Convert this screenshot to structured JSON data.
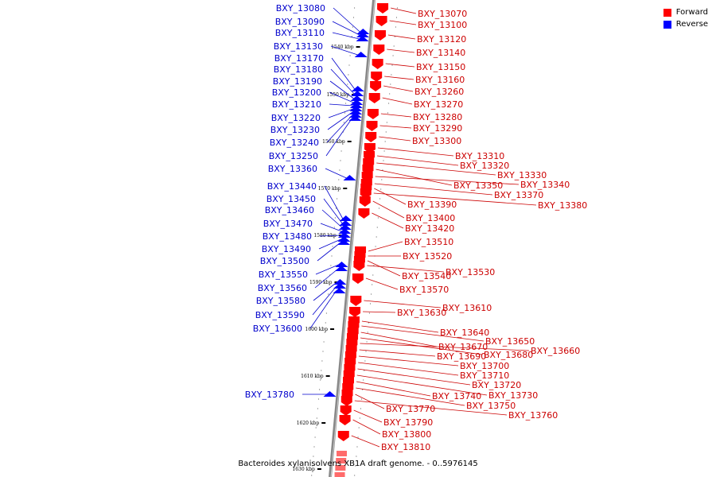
{
  "legend": {
    "forward_label": "Forward",
    "reverse_label": "Reverse",
    "forward_color": "#ff0000",
    "reverse_color": "#0000ff"
  },
  "caption": "Bacteroides xylanisolvens XB1A draft genome. - 0..5976145",
  "colors": {
    "backbone": "#888888",
    "forward_gene": "#ff0000",
    "reverse_gene": "#0000ff",
    "forward_label": "#cc0000",
    "reverse_label": "#0000cc",
    "tick": "#000000"
  },
  "scale": {
    "unit": "kbp",
    "ticks": [
      "1540 kbp",
      "1550 kbp",
      "1560 kbp",
      "1570 kbp",
      "1580 kbp",
      "1590 kbp",
      "1600 kbp",
      "1610 kbp",
      "1620 kbp",
      "1630 kbp"
    ]
  },
  "reverse_genes": [
    "BXY_13080",
    "BXY_13090",
    "BXY_13110",
    "BXY_13130",
    "BXY_13170",
    "BXY_13180",
    "BXY_13190",
    "BXY_13200",
    "BXY_13210",
    "BXY_13220",
    "BXY_13230",
    "BXY_13240",
    "BXY_13250",
    "BXY_13360",
    "BXY_13440",
    "BXY_13450",
    "BXY_13460",
    "BXY_13470",
    "BXY_13480",
    "BXY_13490",
    "BXY_13500",
    "BXY_13550",
    "BXY_13560",
    "BXY_13580",
    "BXY_13590",
    "BXY_13600",
    "BXY_13780"
  ],
  "forward_genes": [
    "BXY_13070",
    "BXY_13100",
    "BXY_13120",
    "BXY_13140",
    "BXY_13150",
    "BXY_13160",
    "BXY_13260",
    "BXY_13270",
    "BXY_13280",
    "BXY_13290",
    "BXY_13300",
    "BXY_13310",
    "BXY_13320",
    "BXY_13330",
    "BXY_13350",
    "BXY_13340",
    "BXY_13370",
    "BXY_13390",
    "BXY_13380",
    "BXY_13400",
    "BXY_13420",
    "BXY_13510",
    "BXY_13520",
    "BXY_13540",
    "BXY_13530",
    "BXY_13570",
    "BXY_13610",
    "BXY_13630",
    "BXY_13640",
    "BXY_13650",
    "BXY_13670",
    "BXY_13680",
    "BXY_13660",
    "BXY_13690",
    "BXY_13700",
    "BXY_13710",
    "BXY_13720",
    "BXY_13730",
    "BXY_13740",
    "BXY_13750",
    "BXY_13770",
    "BXY_13760",
    "BXY_13790",
    "BXY_13800",
    "BXY_13810"
  ]
}
